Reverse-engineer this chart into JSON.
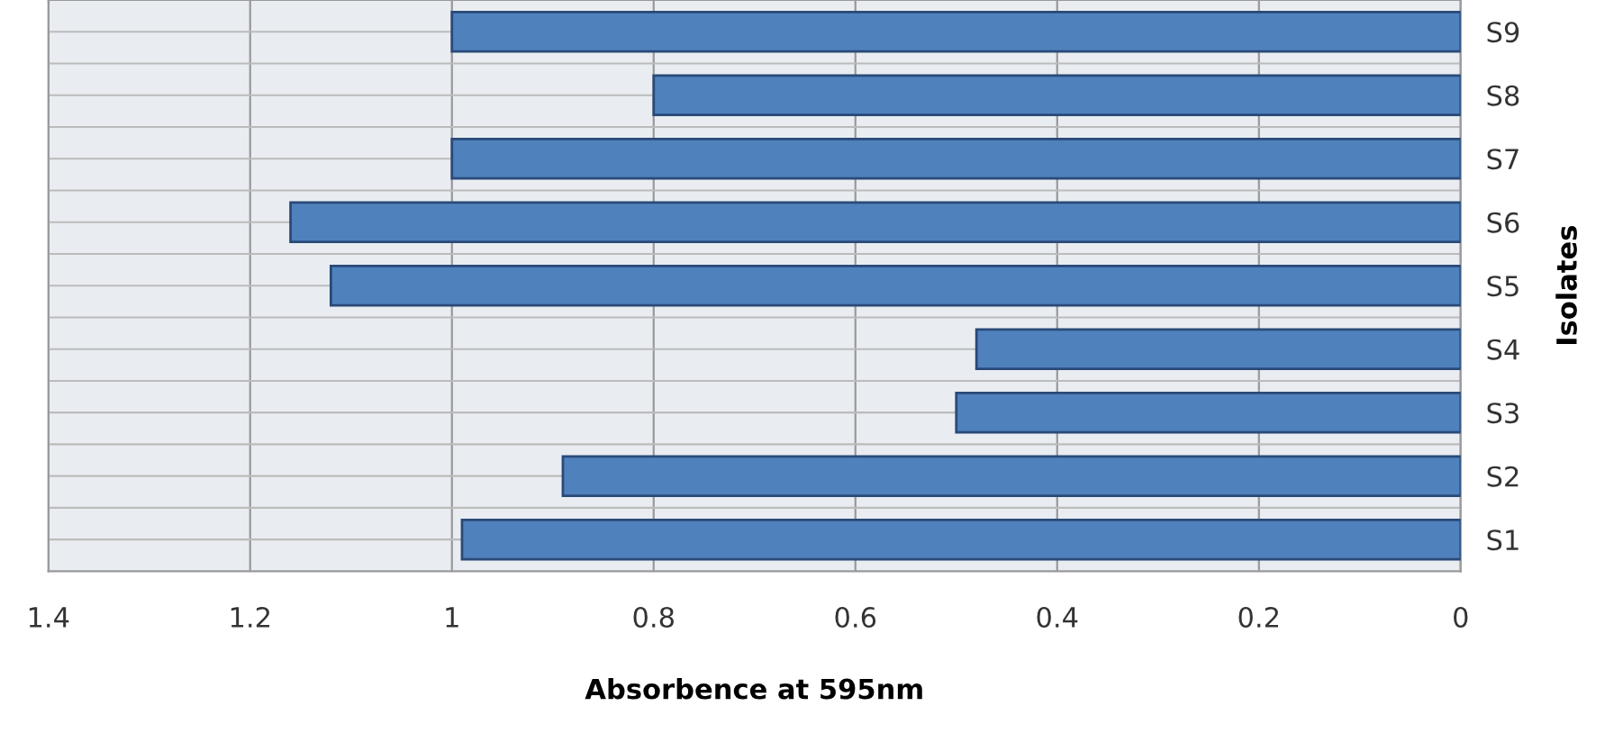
{
  "chart_data": {
    "type": "bar",
    "orientation": "horizontal",
    "xlabel": "Absorbence at 595nm",
    "ylabel": "Isolates",
    "categories": [
      "S9",
      "S8",
      "S7",
      "S6",
      "S5",
      "S4",
      "S3",
      "S2",
      "S1"
    ],
    "values": [
      1.0,
      0.8,
      1.0,
      1.16,
      1.12,
      0.48,
      0.5,
      0.89,
      0.99
    ],
    "color": "#4f81bd",
    "xlim": [
      1.4,
      0
    ],
    "xticks": [
      1.4,
      1.2,
      1,
      0.8,
      0.6,
      0.4,
      0.2,
      0
    ],
    "grid": true,
    "legend": false
  }
}
